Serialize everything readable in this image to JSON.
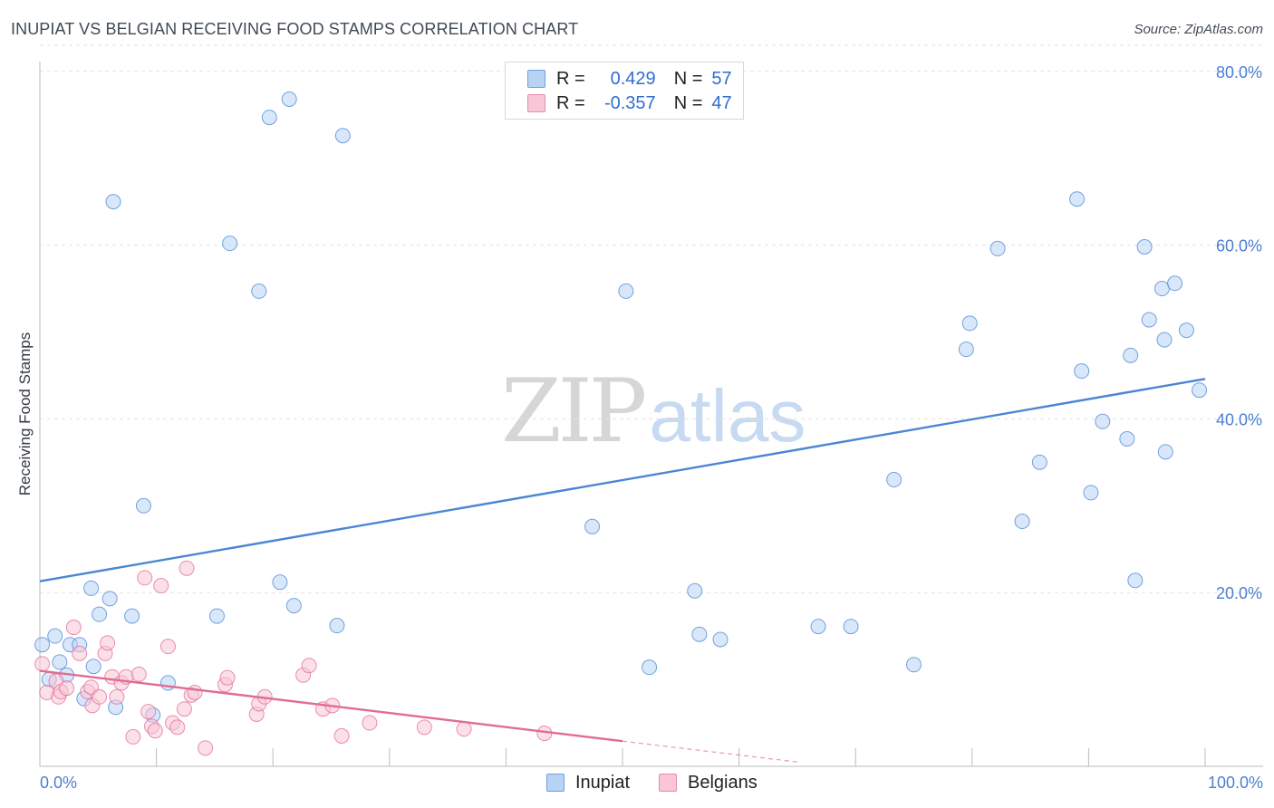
{
  "title": "INUPIAT VS BELGIAN RECEIVING FOOD STAMPS CORRELATION CHART",
  "source": "Source: ZipAtlas.com",
  "watermark": {
    "zip": "ZIP",
    "atlas": "atlas"
  },
  "legend_top": [
    {
      "r_label": "R =",
      "r_value": "0.429",
      "n_label": "N =",
      "n_value": "57"
    },
    {
      "r_label": "R =",
      "r_value": "-0.357",
      "n_label": "N =",
      "n_value": "47"
    }
  ],
  "legend_bottom": [
    {
      "label": "Inupiat"
    },
    {
      "label": "Belgians"
    }
  ],
  "chart_data": {
    "type": "scatter",
    "title": "INUPIAT VS BELGIAN RECEIVING FOOD STAMPS CORRELATION CHART",
    "xlabel": "",
    "ylabel": "Receiving Food Stamps",
    "xlim": [
      0,
      100
    ],
    "ylim": [
      0,
      83
    ],
    "x_tick_labels": [
      "0.0%",
      "100.0%"
    ],
    "y_ticks": [
      20,
      40,
      60,
      80
    ],
    "y_tick_labels": [
      "20.0%",
      "40.0%",
      "60.0%",
      "80.0%"
    ],
    "grid": true,
    "legend_position": "top-center",
    "colors": {
      "inupiat": "#4a86d4",
      "inupiat_fill": "#b9d3f5",
      "belgians": "#e06c94",
      "belgians_fill": "#f8c6d6"
    },
    "series": [
      {
        "name": "Inupiat",
        "r": 0.429,
        "n": 57,
        "trend": {
          "x": [
            0,
            100
          ],
          "y": [
            21.3,
            44.6
          ]
        },
        "points": [
          [
            0.2,
            14
          ],
          [
            1.3,
            15
          ],
          [
            0.8,
            10
          ],
          [
            1.7,
            12
          ],
          [
            2.3,
            10.5
          ],
          [
            2.6,
            14
          ],
          [
            3.4,
            14
          ],
          [
            3.8,
            7.8
          ],
          [
            4.4,
            20.5
          ],
          [
            4.6,
            11.5
          ],
          [
            5.1,
            17.5
          ],
          [
            6.0,
            19.3
          ],
          [
            6.3,
            65
          ],
          [
            6.5,
            6.8
          ],
          [
            7.9,
            17.3
          ],
          [
            8.9,
            30
          ],
          [
            9.7,
            5.9
          ],
          [
            11.0,
            9.6
          ],
          [
            15.2,
            17.3
          ],
          [
            16.3,
            60.2
          ],
          [
            18.8,
            54.7
          ],
          [
            19.7,
            74.7
          ],
          [
            20.6,
            21.2
          ],
          [
            21.4,
            76.8
          ],
          [
            21.8,
            18.5
          ],
          [
            25.5,
            16.2
          ],
          [
            26.0,
            72.6
          ],
          [
            47.4,
            27.6
          ],
          [
            50.3,
            54.7
          ],
          [
            52.3,
            11.4
          ],
          [
            56.2,
            20.2
          ],
          [
            56.6,
            15.2
          ],
          [
            58.4,
            14.6
          ],
          [
            66.8,
            16.1
          ],
          [
            69.6,
            16.1
          ],
          [
            73.3,
            33
          ],
          [
            75.0,
            11.7
          ],
          [
            79.5,
            48
          ],
          [
            79.8,
            51
          ],
          [
            82.2,
            59.6
          ],
          [
            84.3,
            28.2
          ],
          [
            85.8,
            35
          ],
          [
            89.0,
            65.3
          ],
          [
            89.4,
            45.5
          ],
          [
            90.2,
            31.5
          ],
          [
            91.2,
            39.7
          ],
          [
            93.3,
            37.7
          ],
          [
            93.6,
            47.3
          ],
          [
            94.0,
            21.4
          ],
          [
            94.8,
            59.8
          ],
          [
            95.2,
            51.4
          ],
          [
            96.3,
            55
          ],
          [
            96.5,
            49.1
          ],
          [
            96.6,
            36.2
          ],
          [
            97.4,
            55.6
          ],
          [
            98.4,
            50.2
          ],
          [
            99.5,
            43.3
          ]
        ]
      },
      {
        "name": "Belgians",
        "r": -0.357,
        "n": 47,
        "trend": {
          "x": [
            0,
            50
          ],
          "y": [
            11,
            2.9
          ]
        },
        "trend_ext": {
          "x": [
            50,
            65
          ],
          "y": [
            2.9,
            0.5
          ]
        },
        "points": [
          [
            0.2,
            11.8
          ],
          [
            0.6,
            8.5
          ],
          [
            1.4,
            9.8
          ],
          [
            1.6,
            8
          ],
          [
            1.8,
            8.6
          ],
          [
            2.3,
            9
          ],
          [
            2.9,
            16
          ],
          [
            3.4,
            13
          ],
          [
            4.1,
            8.6
          ],
          [
            4.4,
            9.1
          ],
          [
            4.5,
            7
          ],
          [
            5.1,
            8
          ],
          [
            5.6,
            13
          ],
          [
            5.8,
            14.2
          ],
          [
            6.2,
            10.3
          ],
          [
            6.6,
            8
          ],
          [
            7.0,
            9.6
          ],
          [
            7.4,
            10.3
          ],
          [
            8.0,
            3.4
          ],
          [
            8.5,
            10.6
          ],
          [
            9.0,
            21.7
          ],
          [
            9.3,
            6.3
          ],
          [
            9.6,
            4.6
          ],
          [
            9.9,
            4.1
          ],
          [
            10.4,
            20.8
          ],
          [
            11.0,
            13.8
          ],
          [
            11.4,
            5
          ],
          [
            11.8,
            4.5
          ],
          [
            12.4,
            6.6
          ],
          [
            12.6,
            22.8
          ],
          [
            13.0,
            8.2
          ],
          [
            13.3,
            8.5
          ],
          [
            14.2,
            2.1
          ],
          [
            15.9,
            9.4
          ],
          [
            16.1,
            10.2
          ],
          [
            18.6,
            6
          ],
          [
            18.8,
            7.2
          ],
          [
            19.3,
            8
          ],
          [
            22.6,
            10.5
          ],
          [
            23.1,
            11.6
          ],
          [
            24.3,
            6.6
          ],
          [
            25.1,
            7
          ],
          [
            25.9,
            3.5
          ],
          [
            28.3,
            5
          ],
          [
            33.0,
            4.5
          ],
          [
            36.4,
            4.3
          ],
          [
            43.3,
            3.8
          ]
        ]
      }
    ]
  }
}
